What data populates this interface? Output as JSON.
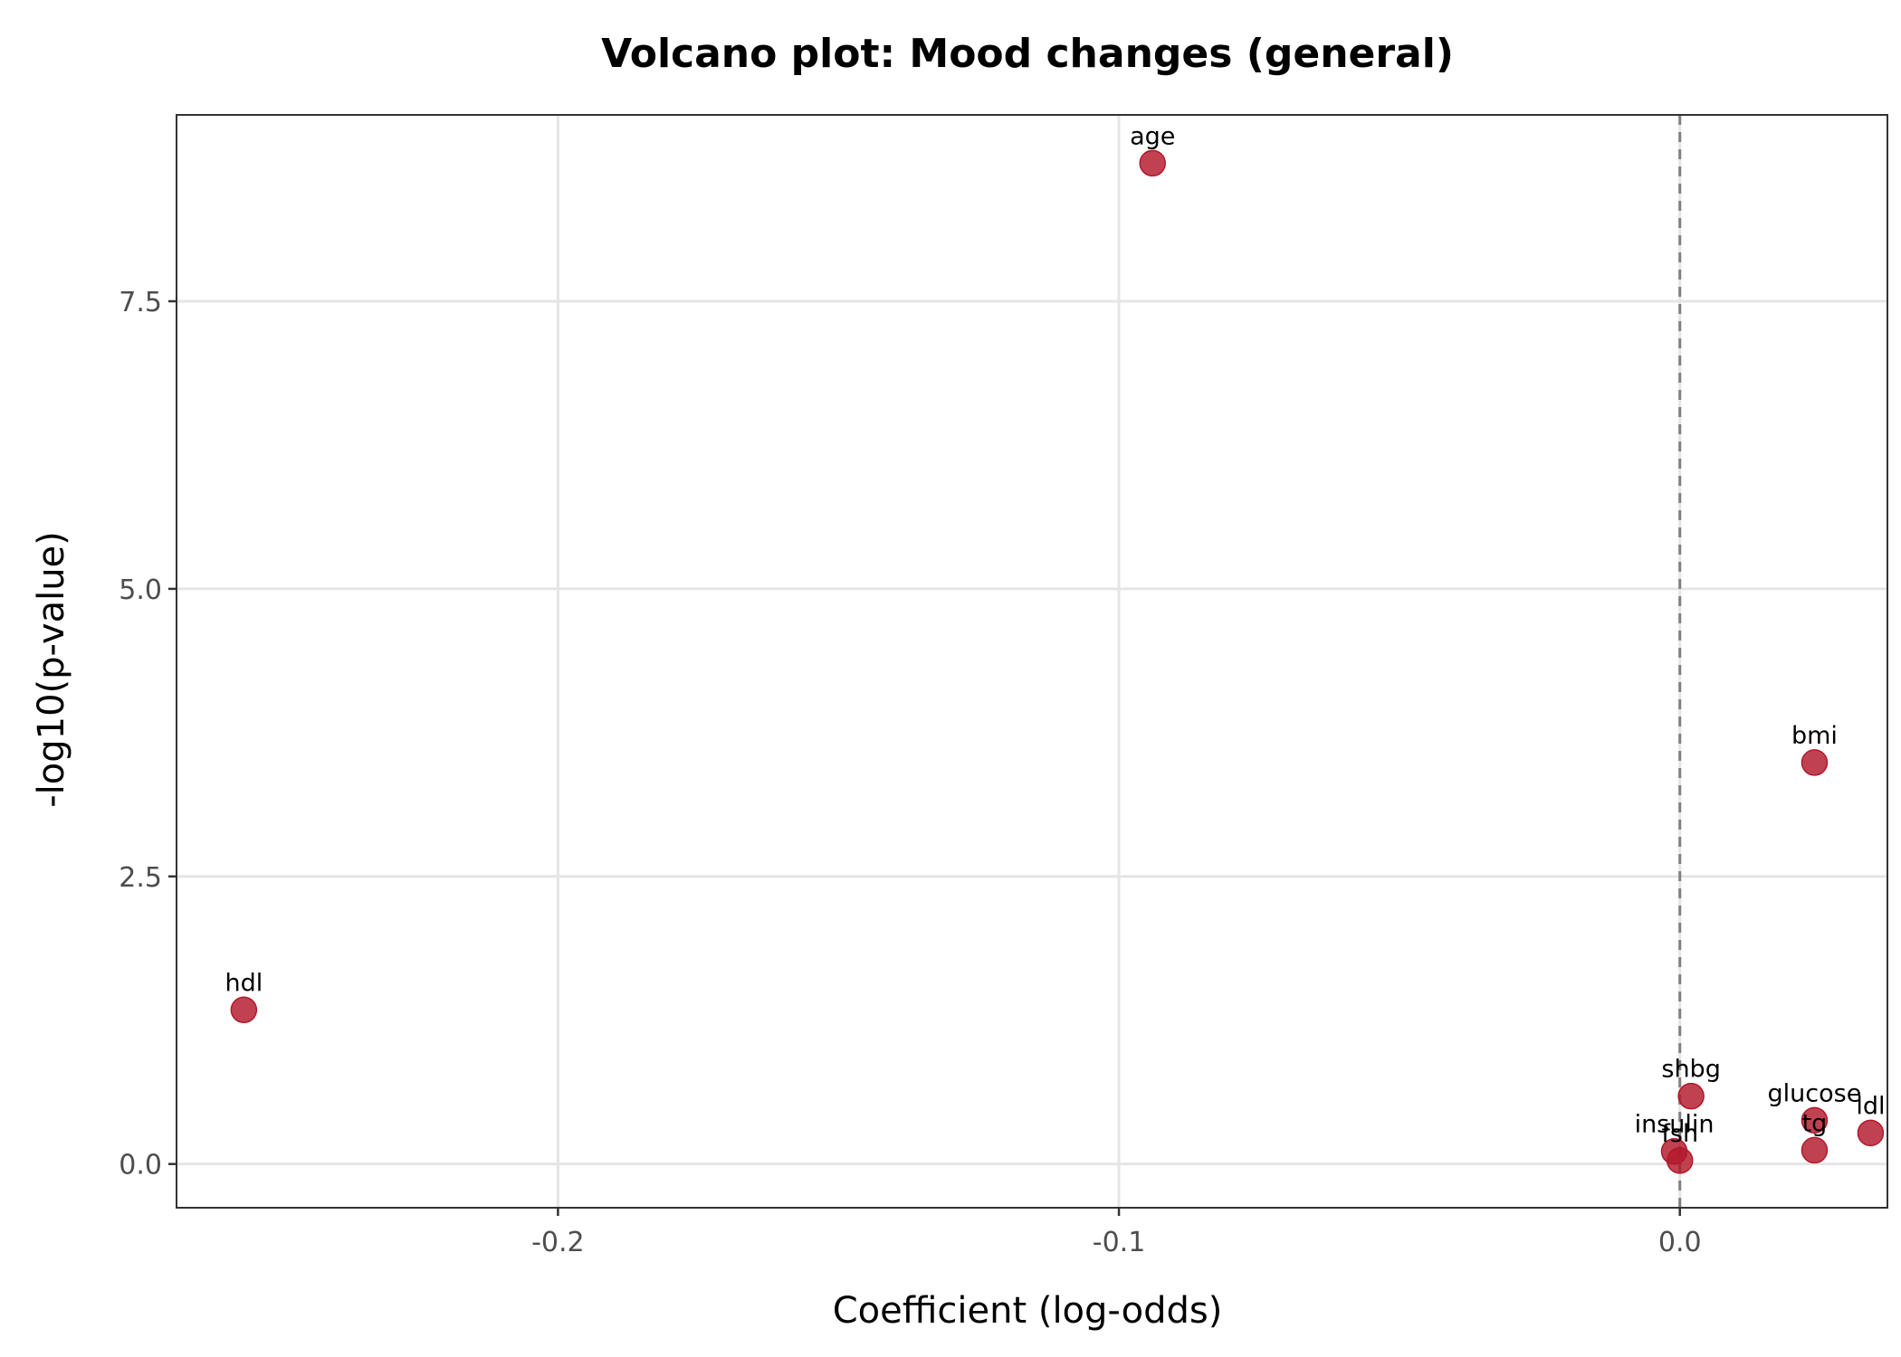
{
  "chart_data": {
    "type": "scatter",
    "title": "Volcano plot: Mood changes (general)",
    "xlabel": "Coefficient (log-odds)",
    "ylabel": "-log10(p-value)",
    "xlim": [
      -0.268,
      0.037
    ],
    "ylim": [
      -0.38,
      9.12
    ],
    "x_ticks": [
      -0.2,
      -0.1,
      0.0
    ],
    "x_tick_labels": [
      "-0.2",
      "-0.1",
      "0.0"
    ],
    "y_ticks": [
      0.0,
      2.5,
      5.0,
      7.5
    ],
    "y_tick_labels": [
      "0.0",
      "2.5",
      "5.0",
      "7.5"
    ],
    "grid": true,
    "reference_line_x": 0.0,
    "point_color": "#b2182b",
    "points": [
      {
        "label": "age",
        "x": -0.094,
        "y": 8.7
      },
      {
        "label": "bmi",
        "x": 0.024,
        "y": 3.49
      },
      {
        "label": "hdl",
        "x": -0.256,
        "y": 1.34
      },
      {
        "label": "shbg",
        "x": 0.002,
        "y": 0.59
      },
      {
        "label": "glucose",
        "x": 0.024,
        "y": 0.38
      },
      {
        "label": "ldl",
        "x": 0.034,
        "y": 0.27
      },
      {
        "label": "tg",
        "x": 0.024,
        "y": 0.12
      },
      {
        "label": "insulin",
        "x": -0.001,
        "y": 0.11
      },
      {
        "label": "fsh",
        "x": 0.0,
        "y": 0.03
      }
    ]
  }
}
